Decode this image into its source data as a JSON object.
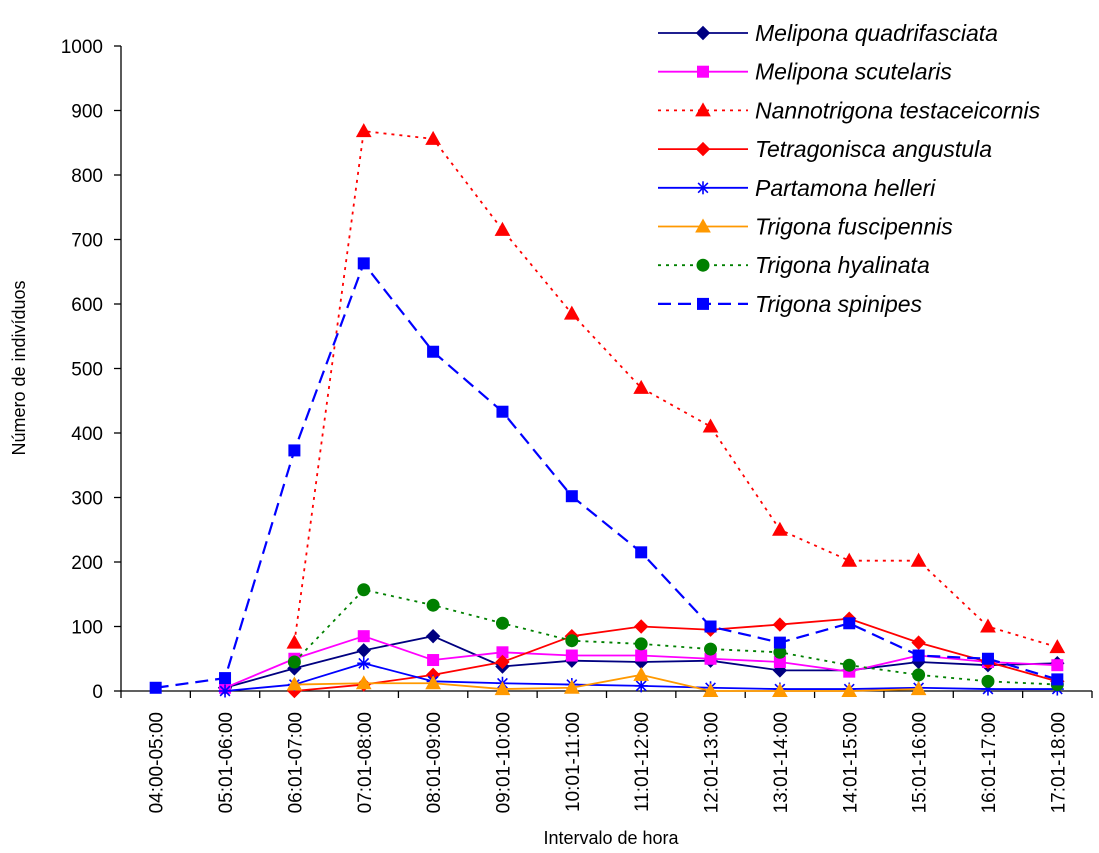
{
  "chart_data": {
    "type": "line",
    "title": "",
    "xlabel": "Intervalo de hora",
    "ylabel": "Número de indivíduos",
    "ylim": [
      0,
      1000
    ],
    "yticks": [
      0,
      100,
      200,
      300,
      400,
      500,
      600,
      700,
      800,
      900,
      1000
    ],
    "grid": false,
    "legend_position": "top-right",
    "categories": [
      "04:00-05:00",
      "05:01-06:00",
      "06:01-07:00",
      "07:01-08:00",
      "08:01-09:00",
      "09:01-10:00",
      "10:01-11:00",
      "11:01-12:00",
      "12:01-13:00",
      "13:01-14:00",
      "14:01-15:00",
      "15:01-16:00",
      "16:01-17:00",
      "17:01-18:00"
    ],
    "series": [
      {
        "name": "Melipona quadrifasciata",
        "color": "#000080",
        "dash": "solid",
        "marker": "diamond",
        "values": [
          null,
          5,
          35,
          63,
          85,
          38,
          47,
          45,
          47,
          32,
          32,
          45,
          40,
          43
        ]
      },
      {
        "name": "Melipona scutelaris",
        "color": "#FF00FF",
        "dash": "solid",
        "marker": "square",
        "values": [
          null,
          5,
          50,
          85,
          48,
          60,
          55,
          55,
          50,
          45,
          30,
          55,
          45,
          40
        ]
      },
      {
        "name": "Nannotrigona testaceicornis",
        "color": "#FF0000",
        "dash": "dotted",
        "marker": "triangle",
        "values": [
          null,
          null,
          75,
          868,
          856,
          715,
          585,
          470,
          410,
          250,
          202,
          202,
          100,
          68
        ]
      },
      {
        "name": "Tetragonisca angustula",
        "color": "#FF0000",
        "dash": "solid",
        "marker": "diamond",
        "values": [
          null,
          null,
          0,
          10,
          25,
          45,
          85,
          100,
          95,
          103,
          112,
          75,
          45,
          15
        ]
      },
      {
        "name": "Partamona helleri",
        "color": "#0000FF",
        "dash": "solid",
        "marker": "asterisk",
        "values": [
          null,
          0,
          10,
          43,
          15,
          12,
          10,
          8,
          5,
          3,
          3,
          5,
          3,
          3
        ]
      },
      {
        "name": "Trigona fuscipennis",
        "color": "#FF9900",
        "dash": "solid",
        "marker": "triangle",
        "values": [
          null,
          null,
          10,
          12,
          12,
          3,
          5,
          25,
          0,
          0,
          0,
          3,
          null,
          null
        ]
      },
      {
        "name": "Trigona hyalinata",
        "color": "#008000",
        "dash": "dotted",
        "marker": "circle",
        "values": [
          null,
          null,
          45,
          157,
          133,
          105,
          78,
          73,
          65,
          60,
          40,
          25,
          15,
          10
        ]
      },
      {
        "name": "Trigona spinipes",
        "color": "#0000FF",
        "dash": "dashed",
        "marker": "square",
        "values": [
          5,
          20,
          373,
          663,
          526,
          433,
          302,
          215,
          100,
          75,
          105,
          55,
          50,
          18
        ]
      }
    ]
  }
}
